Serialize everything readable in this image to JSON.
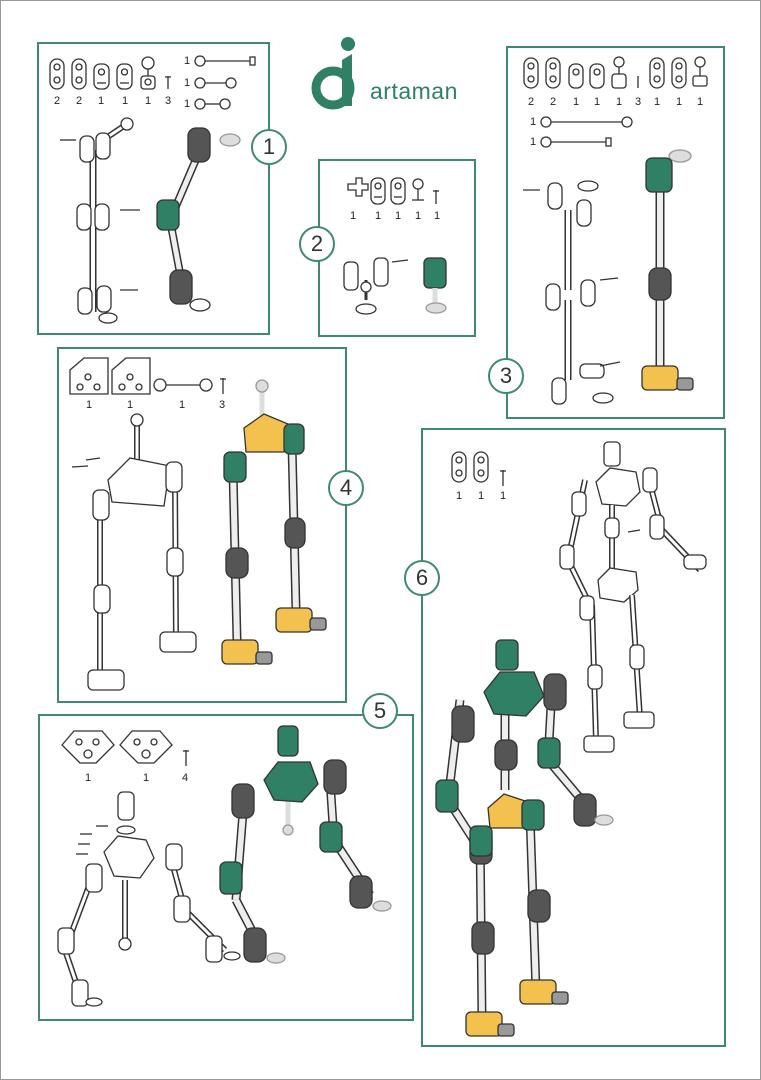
{
  "brand": {
    "name": "artaman",
    "primary_color": "#2f8064",
    "accent_color": "#f2c14e",
    "part_gray": "#666666"
  },
  "steps": [
    {
      "label": "1",
      "parts": [
        {
          "qty": "2"
        },
        {
          "qty": "2"
        },
        {
          "qty": "1"
        },
        {
          "qty": "1"
        },
        {
          "qty": "1"
        },
        {
          "qty": "3"
        }
      ],
      "rods": [
        "1",
        "1",
        "1"
      ]
    },
    {
      "label": "2",
      "parts": [
        {
          "qty": "1"
        },
        {
          "qty": "1"
        },
        {
          "qty": "1"
        },
        {
          "qty": "1"
        },
        {
          "qty": "1"
        }
      ]
    },
    {
      "label": "3",
      "parts": [
        {
          "qty": "2"
        },
        {
          "qty": "2"
        },
        {
          "qty": "1"
        },
        {
          "qty": "1"
        },
        {
          "qty": "1"
        },
        {
          "qty": "3"
        },
        {
          "qty": "1"
        },
        {
          "qty": "1"
        },
        {
          "qty": "1"
        }
      ],
      "rods": [
        "1",
        "1"
      ]
    },
    {
      "label": "4",
      "parts": [
        {
          "qty": "1"
        },
        {
          "qty": "1"
        },
        {
          "qty": "1"
        },
        {
          "qty": "3"
        }
      ]
    },
    {
      "label": "5",
      "parts": [
        {
          "qty": "1"
        },
        {
          "qty": "1"
        },
        {
          "qty": "4"
        }
      ]
    },
    {
      "label": "6",
      "parts": [
        {
          "qty": "1"
        },
        {
          "qty": "1"
        },
        {
          "qty": "1"
        }
      ]
    }
  ]
}
